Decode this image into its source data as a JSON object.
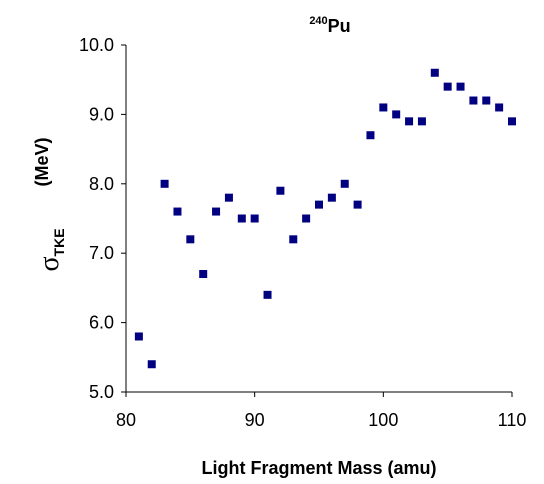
{
  "chart_data": {
    "type": "scatter",
    "title_sup": "240",
    "title_main": "Pu",
    "xlabel": "Light Fragment Mass (amu)",
    "ylabel_symbol": "σ",
    "ylabel_subscript": "TKE",
    "ylabel_unit": "(MeV)",
    "xlim": [
      80,
      110
    ],
    "ylim": [
      5.0,
      10.0
    ],
    "xticks": [
      80,
      90,
      100,
      110
    ],
    "yticks": [
      "5.0",
      "6.0",
      "7.0",
      "8.0",
      "9.0",
      "10.0"
    ],
    "grid": false,
    "marker_color": "#000080",
    "x": [
      81,
      82,
      83,
      84,
      85,
      86,
      87,
      88,
      89,
      90,
      91,
      92,
      93,
      94,
      95,
      96,
      97,
      98,
      99,
      100,
      101,
      102,
      103,
      104,
      105,
      106,
      107,
      108,
      109,
      110
    ],
    "y": [
      5.8,
      5.4,
      8.0,
      7.6,
      7.2,
      6.7,
      7.6,
      7.8,
      7.5,
      7.5,
      6.4,
      7.9,
      7.2,
      7.5,
      7.7,
      7.8,
      8.0,
      7.7,
      8.7,
      9.1,
      9.0,
      8.9,
      8.9,
      9.6,
      9.4,
      9.4,
      9.2,
      9.2,
      9.1,
      8.9
    ]
  }
}
